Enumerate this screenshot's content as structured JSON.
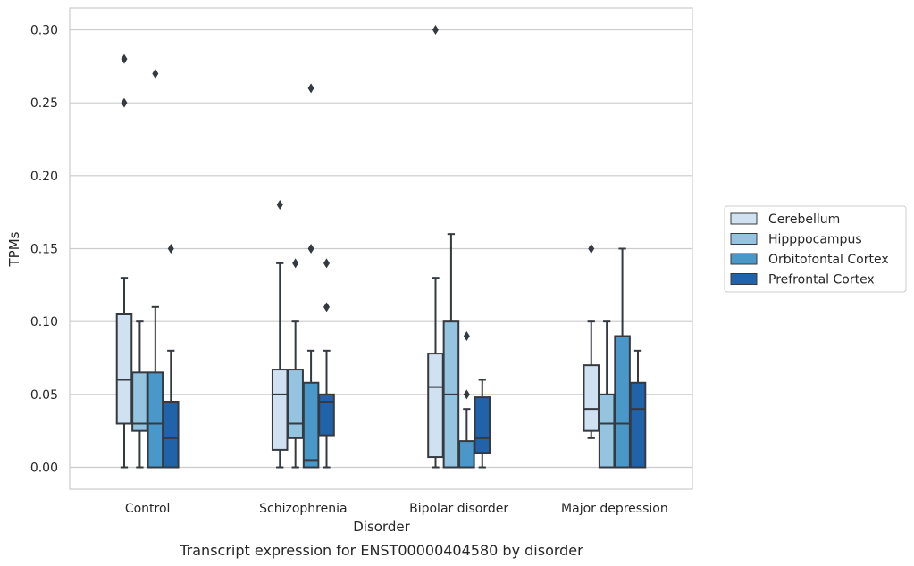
{
  "chart_data": {
    "type": "box",
    "caption": "Transcript expression for ENST00000404580 by disorder",
    "xlabel": "Disorder",
    "ylabel": "TPMs",
    "categories": [
      "Control",
      "Schizophrenia",
      "Bipolar disorder",
      "Major depression"
    ],
    "ylim": [
      -0.015,
      0.315
    ],
    "yticks": [
      "0.00",
      "0.05",
      "0.10",
      "0.15",
      "0.20",
      "0.25",
      "0.30"
    ],
    "grid": true,
    "legend_position": "right",
    "series": [
      {
        "name": "Cerebellum",
        "color": "#d0e1f2",
        "boxes": [
          {
            "whislo": 0.0,
            "q1": 0.03,
            "med": 0.06,
            "q3": 0.105,
            "whishi": 0.13,
            "fliers": [
              0.25,
              0.28
            ]
          },
          {
            "whislo": 0.0,
            "q1": 0.012,
            "med": 0.05,
            "q3": 0.067,
            "whishi": 0.14,
            "fliers": [
              0.18
            ]
          },
          {
            "whislo": 0.0,
            "q1": 0.007,
            "med": 0.055,
            "q3": 0.078,
            "whishi": 0.13,
            "fliers": [
              0.3
            ]
          },
          {
            "whislo": 0.02,
            "q1": 0.025,
            "med": 0.04,
            "q3": 0.07,
            "whishi": 0.1,
            "fliers": [
              0.15
            ]
          }
        ]
      },
      {
        "name": "Hipppocampus",
        "color": "#94c4df",
        "boxes": [
          {
            "whislo": 0.0,
            "q1": 0.025,
            "med": 0.03,
            "q3": 0.065,
            "whishi": 0.1,
            "fliers": []
          },
          {
            "whislo": 0.0,
            "q1": 0.02,
            "med": 0.03,
            "q3": 0.067,
            "whishi": 0.1,
            "fliers": [
              0.14
            ]
          },
          {
            "whislo": 0.0,
            "q1": 0.0,
            "med": 0.05,
            "q3": 0.1,
            "whishi": 0.16,
            "fliers": []
          },
          {
            "whislo": 0.0,
            "q1": 0.0,
            "med": 0.03,
            "q3": 0.05,
            "whishi": 0.1,
            "fliers": []
          }
        ]
      },
      {
        "name": "Orbitofontal Cortex",
        "color": "#4a98c9",
        "boxes": [
          {
            "whislo": 0.0,
            "q1": 0.0,
            "med": 0.03,
            "q3": 0.065,
            "whishi": 0.11,
            "fliers": [
              0.27
            ]
          },
          {
            "whislo": 0.0,
            "q1": 0.0,
            "med": 0.005,
            "q3": 0.058,
            "whishi": 0.08,
            "fliers": [
              0.15,
              0.26
            ]
          },
          {
            "whislo": 0.0,
            "q1": 0.0,
            "med": 0.0,
            "q3": 0.018,
            "whishi": 0.04,
            "fliers": [
              0.05,
              0.09
            ]
          },
          {
            "whislo": 0.0,
            "q1": 0.0,
            "med": 0.03,
            "q3": 0.09,
            "whishi": 0.15,
            "fliers": []
          }
        ]
      },
      {
        "name": "Prefrontal Cortex",
        "color": "#2163aa",
        "boxes": [
          {
            "whislo": 0.0,
            "q1": 0.0,
            "med": 0.02,
            "q3": 0.045,
            "whishi": 0.08,
            "fliers": [
              0.15
            ]
          },
          {
            "whislo": 0.0,
            "q1": 0.022,
            "med": 0.045,
            "q3": 0.05,
            "whishi": 0.08,
            "fliers": [
              0.11,
              0.14
            ]
          },
          {
            "whislo": 0.0,
            "q1": 0.01,
            "med": 0.02,
            "q3": 0.048,
            "whishi": 0.06,
            "fliers": []
          },
          {
            "whislo": 0.0,
            "q1": 0.0,
            "med": 0.04,
            "q3": 0.058,
            "whishi": 0.08,
            "fliers": []
          }
        ]
      }
    ]
  }
}
